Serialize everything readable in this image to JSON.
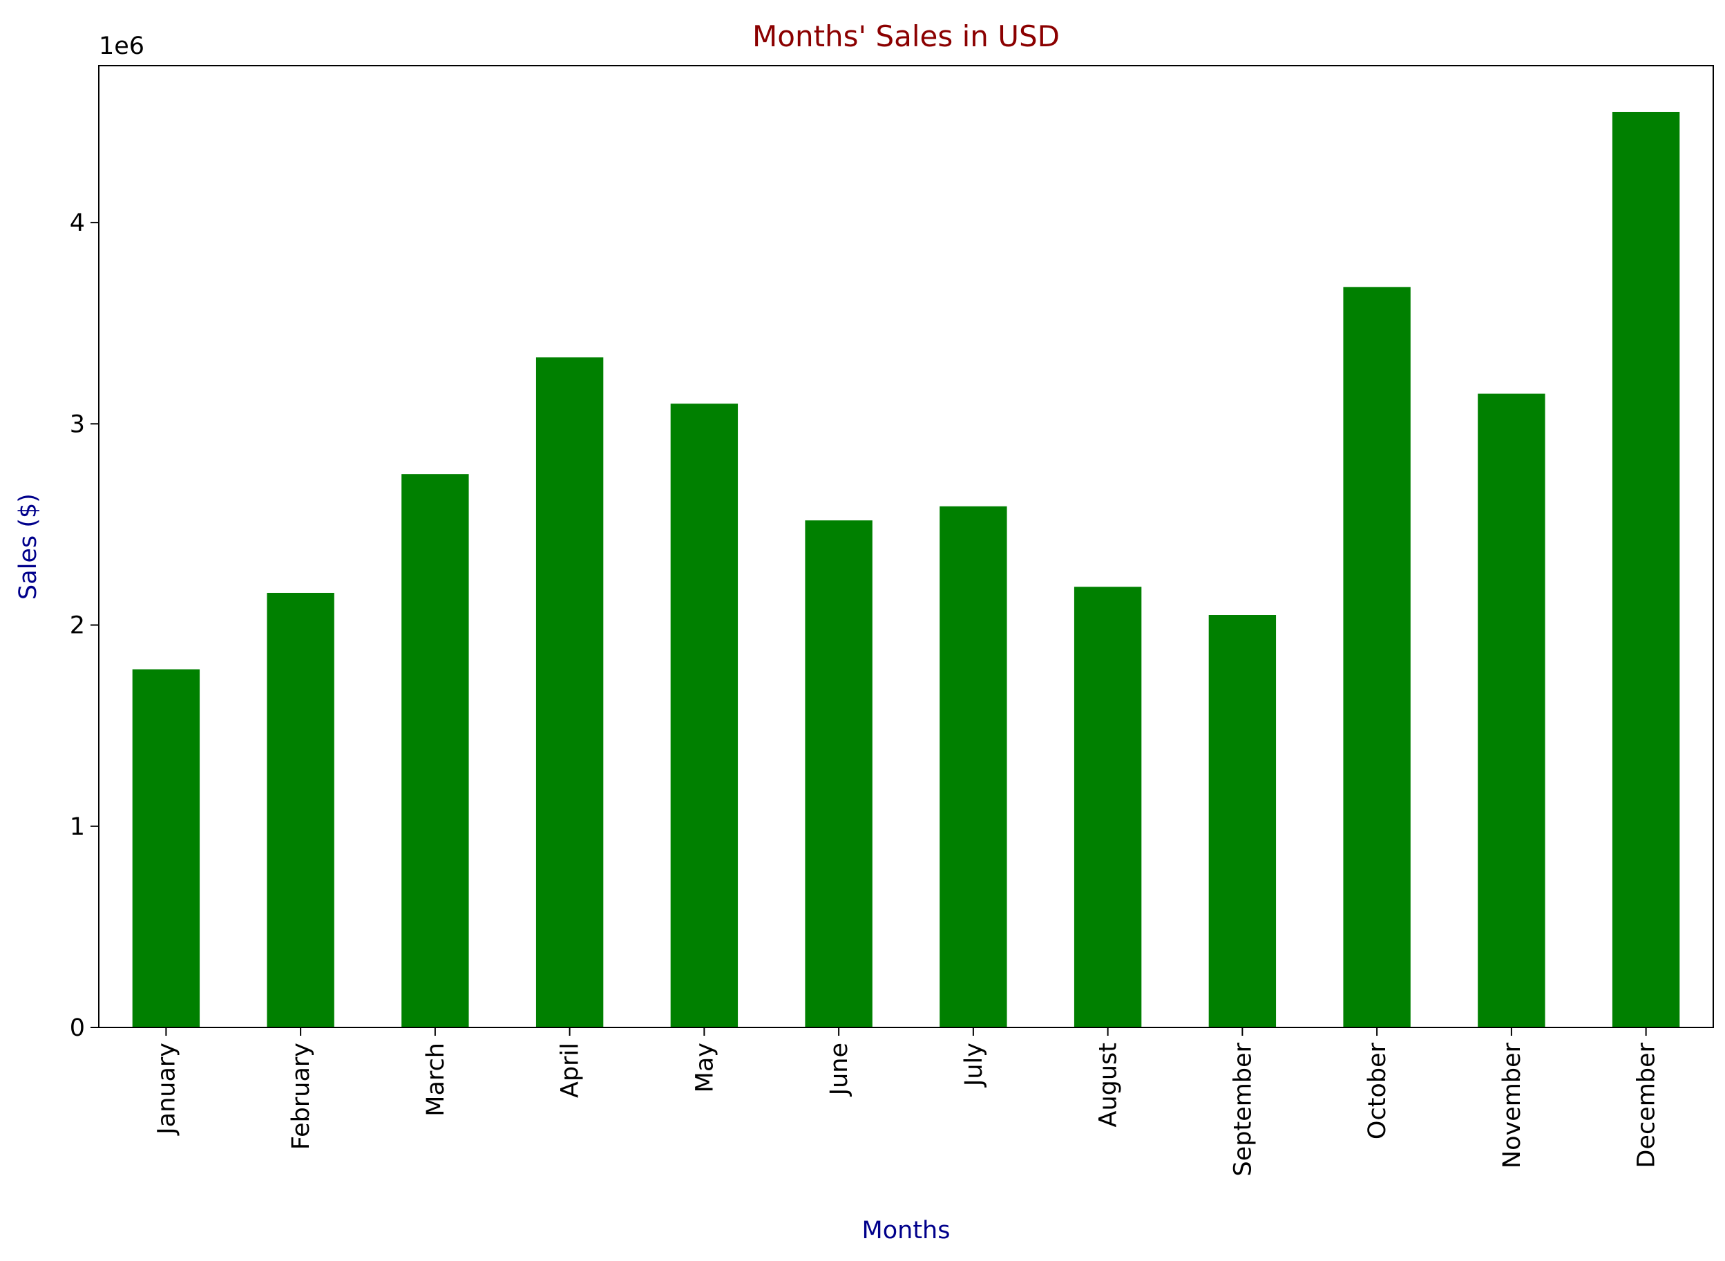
{
  "chart_data": {
    "type": "bar",
    "title": "Months' Sales in USD",
    "xlabel": "Months",
    "ylabel": "Sales ($)",
    "y_offset_label": "1e6",
    "categories": [
      "January",
      "February",
      "March",
      "April",
      "May",
      "June",
      "July",
      "August",
      "September",
      "October",
      "November",
      "December"
    ],
    "values": [
      1780000,
      2160000,
      2750000,
      3330000,
      3100000,
      2520000,
      2590000,
      2190000,
      2050000,
      3680000,
      3150000,
      4550000
    ],
    "ylim": [
      0,
      4780000
    ],
    "yticks": [
      0,
      1,
      2,
      3,
      4
    ],
    "ytick_labels": [
      "0",
      "1",
      "2",
      "3",
      "4"
    ],
    "xtick_rotation": "vertical",
    "grid": false,
    "colors": {
      "bar": "#008000",
      "title": "#8b0000",
      "axis_title": "#00008b",
      "axis": "#000000"
    }
  }
}
